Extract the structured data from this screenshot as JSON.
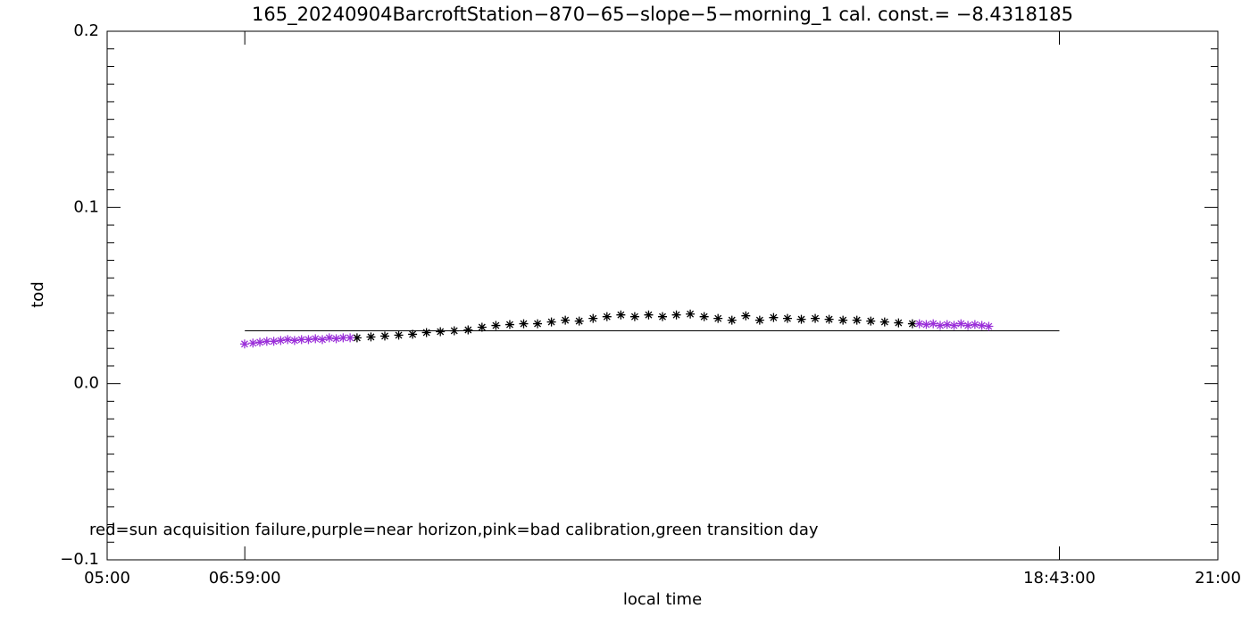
{
  "chart_data": {
    "type": "scatter",
    "title": "165_20240904BarcroftStation−870−65−slope−5−morning_1 cal. const.= −8.4318185",
    "x_label": "local time",
    "y_label": "tod",
    "note": "red=sun acquisition failure,purple=near horizon,pink=bad calibration,green transition day",
    "xlim": [
      5,
      21
    ],
    "ylim": [
      -0.1,
      0.2
    ],
    "xticks": [
      {
        "value": 5,
        "label": "05:00"
      },
      {
        "value": 6.983,
        "label": "06:59:00"
      },
      {
        "value": 18.717,
        "label": "18:43:00"
      },
      {
        "value": 21,
        "label": "21:00"
      }
    ],
    "yticks": [
      {
        "value": -0.1,
        "label": "−0.1"
      },
      {
        "value": 0,
        "label": "0.0"
      },
      0.1,
      0.2
    ],
    "y_minor_ticks": [
      -0.09,
      -0.08,
      -0.07,
      -0.06,
      -0.05,
      -0.04,
      -0.03,
      -0.02,
      -0.01,
      0.01,
      0.02,
      0.03,
      0.04,
      0.05,
      0.06,
      0.07,
      0.08,
      0.09,
      0.11,
      0.12,
      0.13,
      0.14,
      0.15,
      0.16,
      0.17,
      0.18,
      0.19
    ],
    "reference_line": {
      "value": 0.03,
      "x": [
        6.983,
        18.717
      ],
      "color": "#000000"
    },
    "series": [
      {
        "color": "#000000",
        "x": [
          8.6,
          8.8,
          9.0,
          9.2,
          9.4,
          9.6,
          9.8,
          10.0,
          10.2,
          10.4,
          10.6,
          10.8,
          11.0,
          11.2,
          11.4,
          11.6,
          11.8,
          12.0,
          12.2,
          12.4,
          12.6,
          12.8,
          13.0,
          13.2,
          13.4,
          13.6,
          13.8,
          14.0,
          14.2,
          14.4,
          14.6,
          14.8,
          15.0,
          15.2,
          15.4,
          15.6,
          15.8,
          16.0,
          16.2,
          16.4,
          16.6
        ],
        "values": [
          0.026,
          0.0265,
          0.027,
          0.0275,
          0.028,
          0.029,
          0.0295,
          0.03,
          0.0305,
          0.032,
          0.033,
          0.0335,
          0.034,
          0.034,
          0.035,
          0.036,
          0.0355,
          0.037,
          0.038,
          0.039,
          0.038,
          0.039,
          0.038,
          0.039,
          0.0395,
          0.038,
          0.037,
          0.036,
          0.0385,
          0.036,
          0.0375,
          0.037,
          0.0365,
          0.037,
          0.0365,
          0.036,
          0.036,
          0.0355,
          0.035,
          0.0345,
          0.034
        ]
      },
      {
        "color": "#9b30d9",
        "x": [
          6.98,
          7.1,
          7.2,
          7.3,
          7.4,
          7.5,
          7.6,
          7.7,
          7.8,
          7.9,
          8.0,
          8.1,
          8.2,
          8.3,
          8.4,
          8.5
        ],
        "values": [
          0.0225,
          0.023,
          0.0235,
          0.024,
          0.024,
          0.0245,
          0.025,
          0.0245,
          0.025,
          0.025,
          0.0255,
          0.025,
          0.026,
          0.0255,
          0.026,
          0.026
        ]
      },
      {
        "color": "#9b30d9",
        "x": [
          16.7,
          16.8,
          16.9,
          17.0,
          17.1,
          17.2,
          17.3,
          17.4,
          17.5,
          17.6,
          17.7
        ],
        "values": [
          0.034,
          0.0335,
          0.034,
          0.033,
          0.0335,
          0.033,
          0.034,
          0.033,
          0.0335,
          0.033,
          0.0325
        ]
      }
    ]
  }
}
